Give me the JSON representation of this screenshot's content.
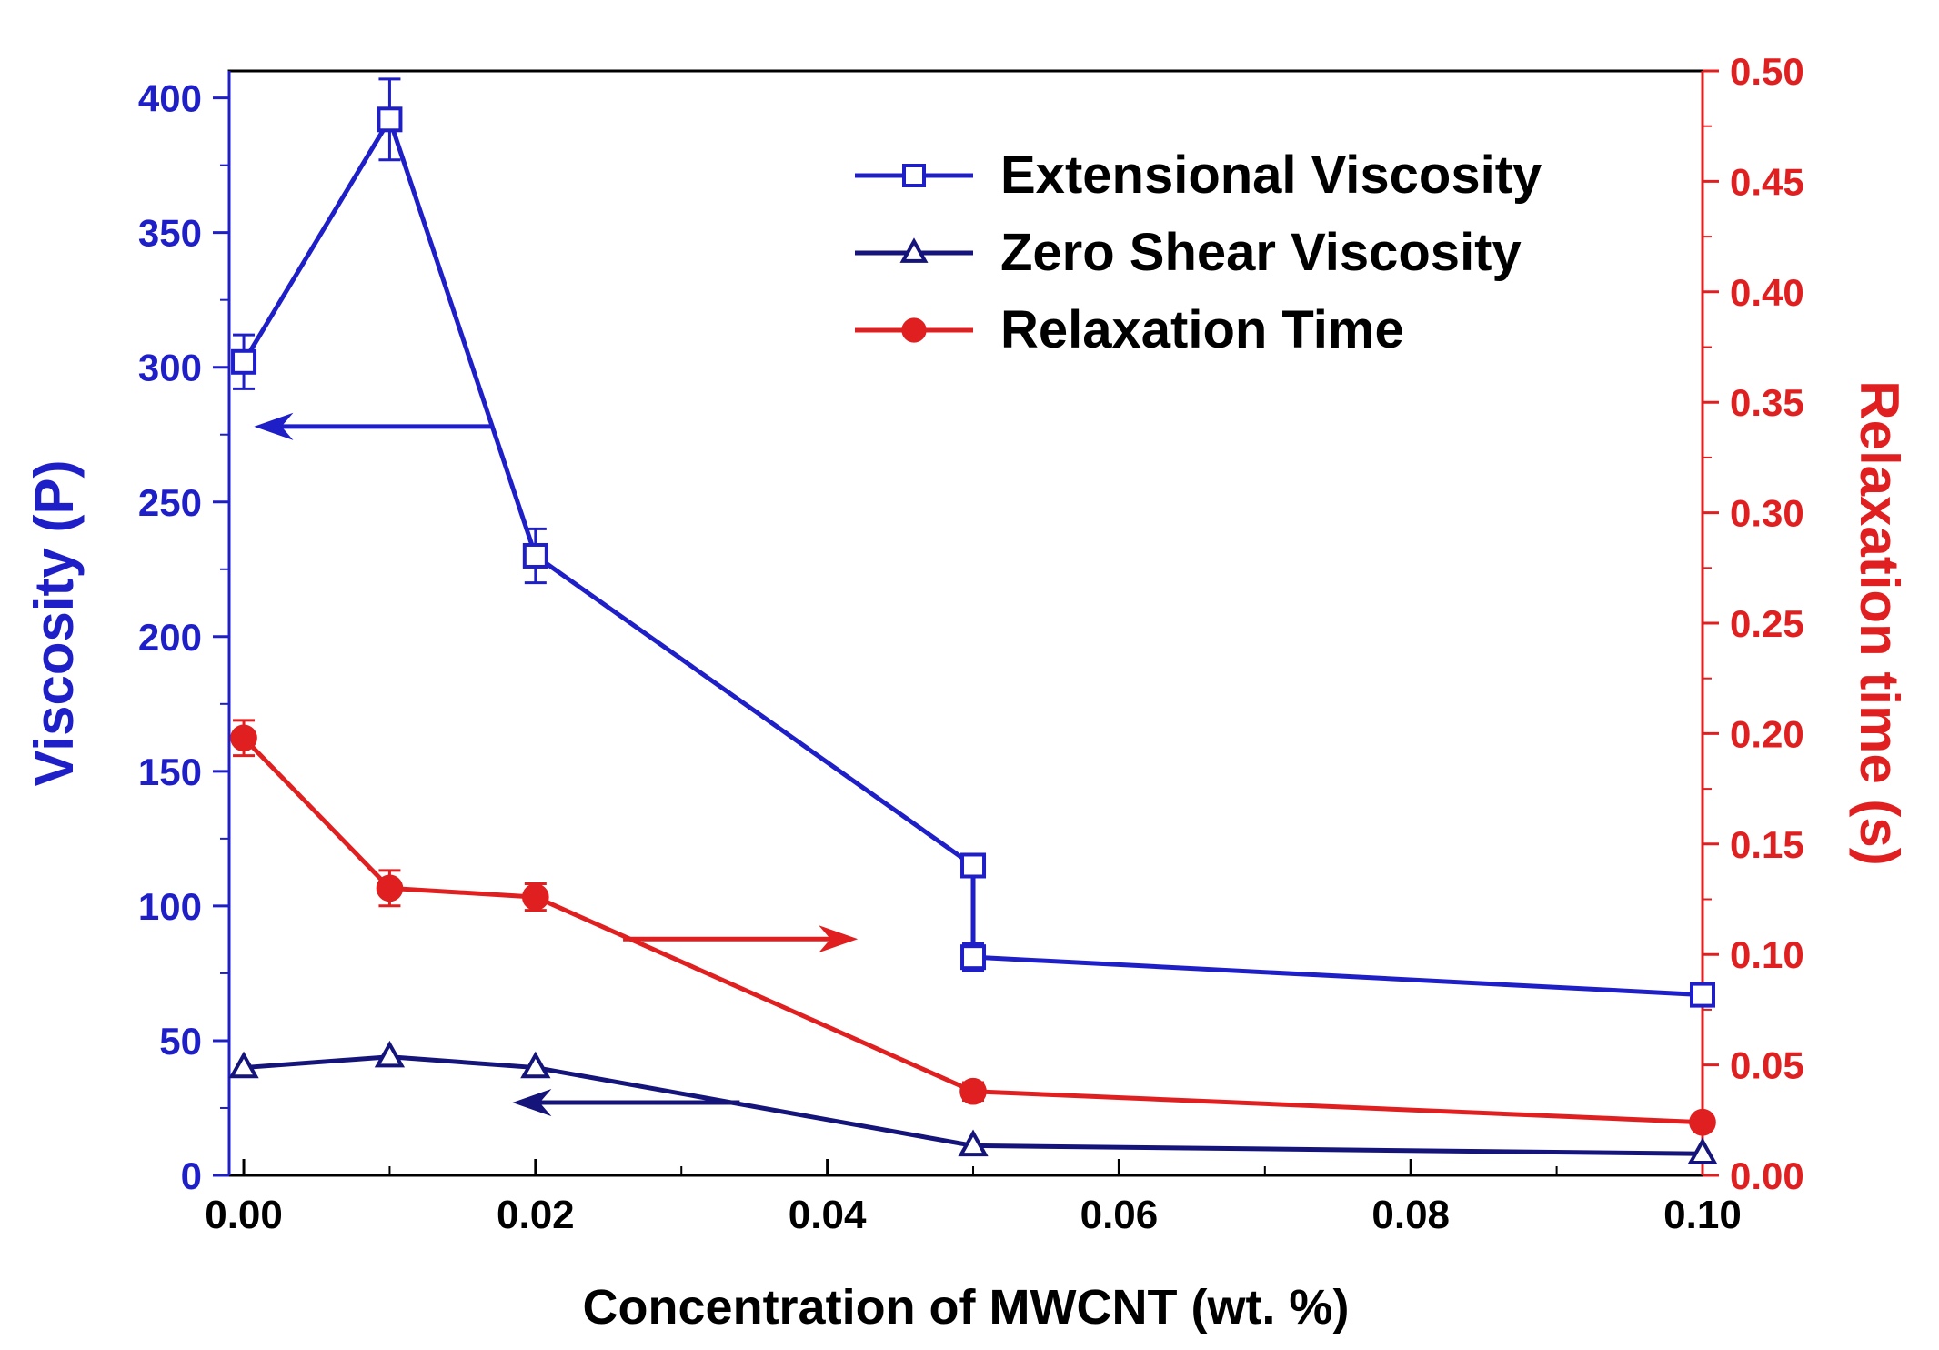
{
  "chart_data": {
    "type": "line",
    "xlabel": "Concentration of MWCNT (wt. %)",
    "ylabel_left": "Viscosity (P)",
    "ylabel_right": "Relaxation time (s)",
    "xlim": [
      -0.001,
      0.1
    ],
    "ylim_left": [
      0,
      410
    ],
    "ylim_right": [
      0,
      0.5
    ],
    "x_ticks": [
      0.0,
      0.02,
      0.04,
      0.06,
      0.08,
      0.1
    ],
    "x_tick_labels": [
      "0.00",
      "0.02",
      "0.04",
      "0.06",
      "0.08",
      "0.10"
    ],
    "y_left_ticks": [
      0,
      50,
      100,
      150,
      200,
      250,
      300,
      350,
      400
    ],
    "y_left_tick_labels": [
      "0",
      "50",
      "100",
      "150",
      "200",
      "250",
      "300",
      "350",
      "400"
    ],
    "y_right_ticks": [
      0.0,
      0.05,
      0.1,
      0.15,
      0.2,
      0.25,
      0.3,
      0.35,
      0.4,
      0.45,
      0.5
    ],
    "y_right_tick_labels": [
      "0.00",
      "0.05",
      "0.10",
      "0.15",
      "0.20",
      "0.25",
      "0.30",
      "0.35",
      "0.40",
      "0.45",
      "0.50"
    ],
    "grid": false,
    "legend_position": "top-right",
    "series": [
      {
        "name": "Extensional Viscosity",
        "axis": "left",
        "marker": "open-square",
        "color": "#1f1fc8",
        "points": [
          {
            "x": 0.0,
            "y": 302,
            "err": 10
          },
          {
            "x": 0.01,
            "y": 392,
            "err": 15
          },
          {
            "x": 0.02,
            "y": 230,
            "err": 10
          },
          {
            "x": 0.05,
            "y": 115,
            "err": 4
          },
          {
            "x": 0.05,
            "y": 81,
            "err": 5
          },
          {
            "x": 0.1,
            "y": 67,
            "err": 3
          }
        ]
      },
      {
        "name": "Zero Shear Viscosity",
        "axis": "left",
        "marker": "open-triangle",
        "color": "#14147a",
        "points": [
          {
            "x": 0.0,
            "y": 40,
            "err": 0
          },
          {
            "x": 0.01,
            "y": 44,
            "err": 0
          },
          {
            "x": 0.02,
            "y": 40,
            "err": 0
          },
          {
            "x": 0.05,
            "y": 11,
            "err": 0
          },
          {
            "x": 0.1,
            "y": 8,
            "err": 0
          }
        ]
      },
      {
        "name": "Relaxation Time",
        "axis": "right",
        "marker": "filled-circle",
        "color": "#e02020",
        "points": [
          {
            "x": 0.0,
            "y": 0.198,
            "err": 0.008
          },
          {
            "x": 0.01,
            "y": 0.13,
            "err": 0.008
          },
          {
            "x": 0.02,
            "y": 0.126,
            "err": 0.006
          },
          {
            "x": 0.05,
            "y": 0.038,
            "err": 0.004
          },
          {
            "x": 0.1,
            "y": 0.024,
            "err": 0.002
          }
        ]
      }
    ],
    "annotations": [
      {
        "type": "arrow",
        "axis": "left",
        "color": "#1f1fc8",
        "from": {
          "x": 0.017,
          "y": 278
        },
        "to": {
          "x": 0.0008,
          "y": 278
        }
      },
      {
        "type": "arrow",
        "axis": "right",
        "color": "#e02020",
        "from": {
          "x": 0.026,
          "y": 0.107
        },
        "to": {
          "x": 0.042,
          "y": 0.107
        }
      },
      {
        "type": "arrow",
        "axis": "left",
        "color": "#14147a",
        "from": {
          "x": 0.034,
          "y": 27
        },
        "to": {
          "x": 0.0185,
          "y": 27
        }
      }
    ]
  }
}
